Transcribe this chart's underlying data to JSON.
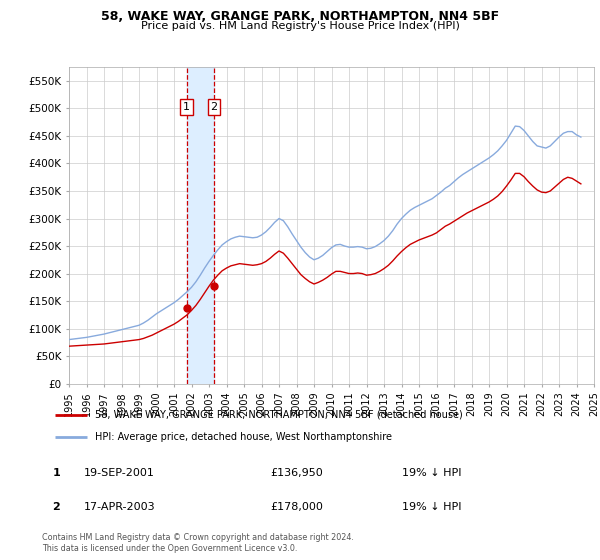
{
  "title": "58, WAKE WAY, GRANGE PARK, NORTHAMPTON, NN4 5BF",
  "subtitle": "Price paid vs. HM Land Registry's House Price Index (HPI)",
  "ylabel_ticks": [
    "£0",
    "£50K",
    "£100K",
    "£150K",
    "£200K",
    "£250K",
    "£300K",
    "£350K",
    "£400K",
    "£450K",
    "£500K",
    "£550K"
  ],
  "ytick_vals": [
    0,
    50000,
    100000,
    150000,
    200000,
    250000,
    300000,
    350000,
    400000,
    450000,
    500000,
    550000
  ],
  "ylim": [
    0,
    575000
  ],
  "legend_line1": "58, WAKE WAY, GRANGE PARK, NORTHAMPTON, NN4 5BF (detached house)",
  "legend_line2": "HPI: Average price, detached house, West Northamptonshire",
  "sale1_label": "1",
  "sale1_date": "19-SEP-2001",
  "sale1_price": "£136,950",
  "sale1_hpi": "19% ↓ HPI",
  "sale2_label": "2",
  "sale2_date": "17-APR-2003",
  "sale2_price": "£178,000",
  "sale2_hpi": "19% ↓ HPI",
  "footer": "Contains HM Land Registry data © Crown copyright and database right 2024.\nThis data is licensed under the Open Government Licence v3.0.",
  "sale1_x": 2001.72,
  "sale1_y": 136950,
  "sale2_x": 2003.29,
  "sale2_y": 178000,
  "hpi_color": "#88aadd",
  "price_color": "#cc0000",
  "shade_color": "#ddeeff",
  "vline_color": "#cc0000",
  "grid_color": "#cccccc",
  "hpi_x": [
    1995.0,
    1995.25,
    1995.5,
    1995.75,
    1996.0,
    1996.25,
    1996.5,
    1996.75,
    1997.0,
    1997.25,
    1997.5,
    1997.75,
    1998.0,
    1998.25,
    1998.5,
    1998.75,
    1999.0,
    1999.25,
    1999.5,
    1999.75,
    2000.0,
    2000.25,
    2000.5,
    2000.75,
    2001.0,
    2001.25,
    2001.5,
    2001.75,
    2002.0,
    2002.25,
    2002.5,
    2002.75,
    2003.0,
    2003.25,
    2003.5,
    2003.75,
    2004.0,
    2004.25,
    2004.5,
    2004.75,
    2005.0,
    2005.25,
    2005.5,
    2005.75,
    2006.0,
    2006.25,
    2006.5,
    2006.75,
    2007.0,
    2007.25,
    2007.5,
    2007.75,
    2008.0,
    2008.25,
    2008.5,
    2008.75,
    2009.0,
    2009.25,
    2009.5,
    2009.75,
    2010.0,
    2010.25,
    2010.5,
    2010.75,
    2011.0,
    2011.25,
    2011.5,
    2011.75,
    2012.0,
    2012.25,
    2012.5,
    2012.75,
    2013.0,
    2013.25,
    2013.5,
    2013.75,
    2014.0,
    2014.25,
    2014.5,
    2014.75,
    2015.0,
    2015.25,
    2015.5,
    2015.75,
    2016.0,
    2016.25,
    2016.5,
    2016.75,
    2017.0,
    2017.25,
    2017.5,
    2017.75,
    2018.0,
    2018.25,
    2018.5,
    2018.75,
    2019.0,
    2019.25,
    2019.5,
    2019.75,
    2020.0,
    2020.25,
    2020.5,
    2020.75,
    2021.0,
    2021.25,
    2021.5,
    2021.75,
    2022.0,
    2022.25,
    2022.5,
    2022.75,
    2023.0,
    2023.25,
    2023.5,
    2023.75,
    2024.0,
    2024.25
  ],
  "hpi_y": [
    80000,
    81000,
    82000,
    83000,
    84000,
    85500,
    87000,
    88500,
    90000,
    92000,
    94000,
    96000,
    98000,
    100000,
    102000,
    104000,
    106000,
    110000,
    115000,
    121000,
    127000,
    132000,
    137000,
    142000,
    147000,
    153000,
    160000,
    167000,
    175000,
    185000,
    197000,
    210000,
    222000,
    233000,
    243000,
    252000,
    258000,
    263000,
    266000,
    268000,
    267000,
    266000,
    265000,
    266000,
    270000,
    276000,
    284000,
    293000,
    300000,
    296000,
    285000,
    272000,
    260000,
    248000,
    238000,
    230000,
    225000,
    228000,
    233000,
    240000,
    247000,
    252000,
    253000,
    250000,
    248000,
    248000,
    249000,
    248000,
    245000,
    246000,
    249000,
    254000,
    260000,
    268000,
    278000,
    290000,
    300000,
    308000,
    315000,
    320000,
    324000,
    328000,
    332000,
    336000,
    342000,
    348000,
    355000,
    360000,
    367000,
    374000,
    380000,
    385000,
    390000,
    395000,
    400000,
    405000,
    410000,
    416000,
    423000,
    432000,
    442000,
    455000,
    468000,
    467000,
    460000,
    450000,
    440000,
    432000,
    430000,
    428000,
    432000,
    440000,
    448000,
    455000,
    458000,
    458000,
    452000,
    448000
  ],
  "price_y": [
    68000,
    68500,
    69000,
    69500,
    70000,
    70500,
    71000,
    71500,
    72000,
    73000,
    74000,
    75000,
    76000,
    77000,
    78000,
    79000,
    80000,
    82000,
    85000,
    88000,
    92000,
    96000,
    100000,
    104000,
    108000,
    113000,
    119000,
    125000,
    133000,
    142000,
    153000,
    165000,
    177000,
    188000,
    197000,
    205000,
    210000,
    214000,
    216000,
    218000,
    217000,
    216000,
    215000,
    216000,
    218000,
    222000,
    228000,
    235000,
    241000,
    237000,
    228000,
    218000,
    208000,
    198000,
    191000,
    185000,
    181000,
    184000,
    188000,
    193000,
    199000,
    204000,
    204000,
    202000,
    200000,
    200000,
    201000,
    200000,
    197000,
    198000,
    200000,
    204000,
    209000,
    215000,
    223000,
    232000,
    240000,
    247000,
    253000,
    257000,
    261000,
    264000,
    267000,
    270000,
    274000,
    280000,
    286000,
    290000,
    295000,
    300000,
    305000,
    310000,
    314000,
    318000,
    322000,
    326000,
    330000,
    335000,
    341000,
    349000,
    359000,
    370000,
    382000,
    382000,
    376000,
    367000,
    359000,
    352000,
    348000,
    347000,
    350000,
    357000,
    364000,
    371000,
    375000,
    373000,
    368000,
    363000
  ],
  "xtick_years": [
    1995,
    1996,
    1997,
    1998,
    1999,
    2000,
    2001,
    2002,
    2003,
    2004,
    2005,
    2006,
    2007,
    2008,
    2009,
    2010,
    2011,
    2012,
    2013,
    2014,
    2015,
    2016,
    2017,
    2018,
    2019,
    2020,
    2021,
    2022,
    2023,
    2024,
    2025
  ]
}
